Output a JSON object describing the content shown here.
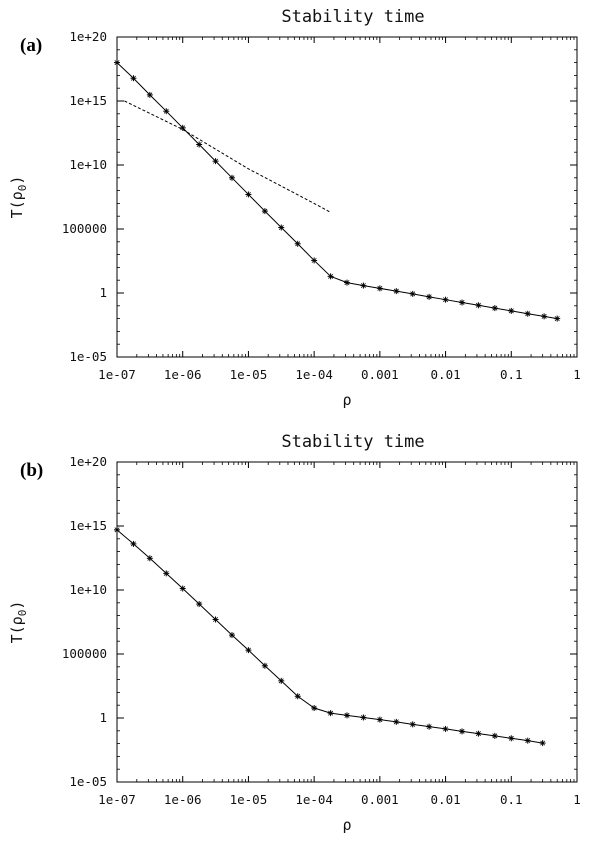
{
  "chart_data": [
    {
      "type": "line",
      "panel_label": "(a)",
      "title": "Stability time",
      "xlabel": "ρ",
      "xlabel_sub": "0",
      "ylabel": "T(ρ",
      "ylabel_sub": "0",
      "ylabel_close": ")",
      "xscale": "log",
      "yscale": "log",
      "xlim": [
        1e-07,
        1
      ],
      "ylim": [
        1e-05,
        1e+20
      ],
      "xticks": [
        1e-07,
        1e-06,
        1e-05,
        0.0001,
        0.001,
        0.01,
        0.1,
        1
      ],
      "xtick_labels": [
        "1e-07",
        "1e-06",
        "1e-05",
        "1e-04",
        "0.001",
        "0.01",
        "0.1",
        "1"
      ],
      "yticks": [
        1e-05,
        1,
        100000.0,
        10000000000.0,
        1000000000000000.0,
        1e+20
      ],
      "ytick_labels": [
        "1e-05",
        "1",
        "100000",
        "1e+10",
        "1e+15",
        "1e+20"
      ],
      "grid": false,
      "series": [
        {
          "style": "solid-markers",
          "x": [
            1e-07,
            1.78e-07,
            3.16e-07,
            5.62e-07,
            1e-06,
            1.78e-06,
            3.16e-06,
            5.62e-06,
            1e-05,
            1.78e-05,
            3.16e-05,
            5.62e-05,
            0.0001,
            0.000178,
            0.000316,
            0.000562,
            0.001,
            0.00178,
            0.00316,
            0.00562,
            0.01,
            0.0178,
            0.0316,
            0.0562,
            0.1,
            0.178,
            0.316,
            0.5
          ],
          "y": [
            1e+18,
            6e+16,
            3000000000000000.0,
            160000000000000.0,
            8000000000000.0,
            400000000000.0,
            20000000000.0,
            1000000000.0,
            50000000.0,
            2500000.0,
            130000.0,
            7000.0,
            350,
            20,
            6.5,
            3.8,
            2.3,
            1.4,
            0.85,
            0.5,
            0.3,
            0.18,
            0.11,
            0.066,
            0.04,
            0.024,
            0.015,
            0.01
          ]
        },
        {
          "style": "dashed",
          "x": [
            1.3e-07,
            1e-06,
            1e-05,
            0.0001,
            0.000178
          ],
          "y": [
            1000000000000000.0,
            6000000000000.0,
            5000000000.0,
            10000000.0,
            2000000.0
          ]
        }
      ]
    },
    {
      "type": "line",
      "panel_label": "(b)",
      "title": "Stability time",
      "xlabel": "ρ",
      "xlabel_sub": "0",
      "ylabel": "T(ρ",
      "ylabel_sub": "0",
      "ylabel_close": ")",
      "xscale": "log",
      "yscale": "log",
      "xlim": [
        1e-07,
        1
      ],
      "ylim": [
        1e-05,
        1e+20
      ],
      "xticks": [
        1e-07,
        1e-06,
        1e-05,
        0.0001,
        0.001,
        0.01,
        0.1,
        1
      ],
      "xtick_labels": [
        "1e-07",
        "1e-06",
        "1e-05",
        "1e-04",
        "0.001",
        "0.01",
        "0.1",
        "1"
      ],
      "yticks": [
        1e-05,
        1,
        100000.0,
        10000000000.0,
        1000000000000000.0,
        1e+20
      ],
      "ytick_labels": [
        "1e-05",
        "1",
        "100000",
        "1e+10",
        "1e+15",
        "1e+20"
      ],
      "grid": false,
      "series": [
        {
          "style": "solid-markers",
          "x": [
            1e-07,
            1.78e-07,
            3.16e-07,
            5.62e-07,
            1e-06,
            1.78e-06,
            3.16e-06,
            5.62e-06,
            1e-05,
            1.78e-05,
            3.16e-05,
            5.62e-05,
            0.0001,
            0.000178,
            0.000316,
            0.000562,
            0.001,
            0.00178,
            0.00316,
            0.00562,
            0.01,
            0.0178,
            0.0316,
            0.0562,
            0.1,
            0.178,
            0.3
          ],
          "y": [
            500000000000000.0,
            40000000000000.0,
            3000000000000.0,
            200000000000.0,
            13000000000.0,
            800000000.0,
            50000000.0,
            3000000.0,
            200000.0,
            12000.0,
            800,
            50,
            6,
            2.4,
            1.6,
            1.1,
            0.75,
            0.5,
            0.32,
            0.21,
            0.14,
            0.09,
            0.06,
            0.04,
            0.026,
            0.017,
            0.011
          ]
        }
      ]
    }
  ]
}
